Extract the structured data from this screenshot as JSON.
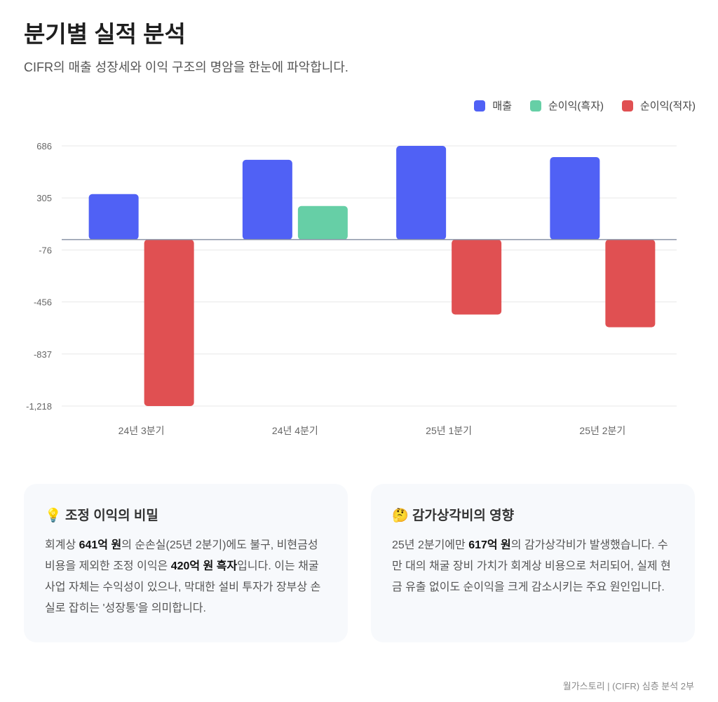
{
  "header": {
    "title": "분기별 실적 분석",
    "subtitle": "CIFR의 매출 성장세와 이익 구조의 명암을 한눈에 파악합니다."
  },
  "chart_data": {
    "type": "bar",
    "categories": [
      "24년 3분기",
      "24년 4분기",
      "25년 1분기",
      "25년 2분기"
    ],
    "series": [
      {
        "name": "매출",
        "color": "#5061f5",
        "values": [
          333,
          584,
          686,
          604
        ]
      },
      {
        "name": "순이익(흑자)",
        "color": "#66cfa6",
        "values": [
          null,
          246,
          null,
          null
        ]
      },
      {
        "name": "순이익(적자)",
        "color": "#e05052",
        "values": [
          -1218,
          null,
          -548,
          -641
        ]
      }
    ],
    "yticks": [
      686,
      305,
      -76,
      -456,
      -837,
      -1218
    ],
    "ytick_labels": [
      "686",
      "305",
      "-76",
      "-456",
      "-837",
      "-1,218"
    ],
    "ylim": [
      -1218,
      686
    ],
    "grid": true,
    "legend": "top-right"
  },
  "cards": [
    {
      "icon": "💡",
      "title": "조정 이익의 비밀",
      "segments": [
        {
          "t": "회계상 ",
          "b": false
        },
        {
          "t": "641억 원",
          "b": true
        },
        {
          "t": "의 순손실(25년 2분기)에도 불구, 비현금성 비용을 제외한 조정 이익은 ",
          "b": false
        },
        {
          "t": "420억 원 흑자",
          "b": true
        },
        {
          "t": "입니다. 이는 채굴 사업 자체는 수익성이 있으나, 막대한 설비 투자가 장부상 손실로 잡히는 '성장통'을 의미합니다.",
          "b": false
        }
      ]
    },
    {
      "icon": "🤔",
      "title": "감가상각비의 영향",
      "segments": [
        {
          "t": "25년 2분기에만 ",
          "b": false
        },
        {
          "t": "617억 원",
          "b": true
        },
        {
          "t": "의 감가상각비가 발생했습니다. 수만 대의 채굴 장비 가치가 회계상 비용으로 처리되어, 실제 현금 유출 없이도 순이익을 크게 감소시키는 주요 원인입니다.",
          "b": false
        }
      ]
    }
  ],
  "footer": "월가스토리 | (CIFR) 심층 분석 2부"
}
